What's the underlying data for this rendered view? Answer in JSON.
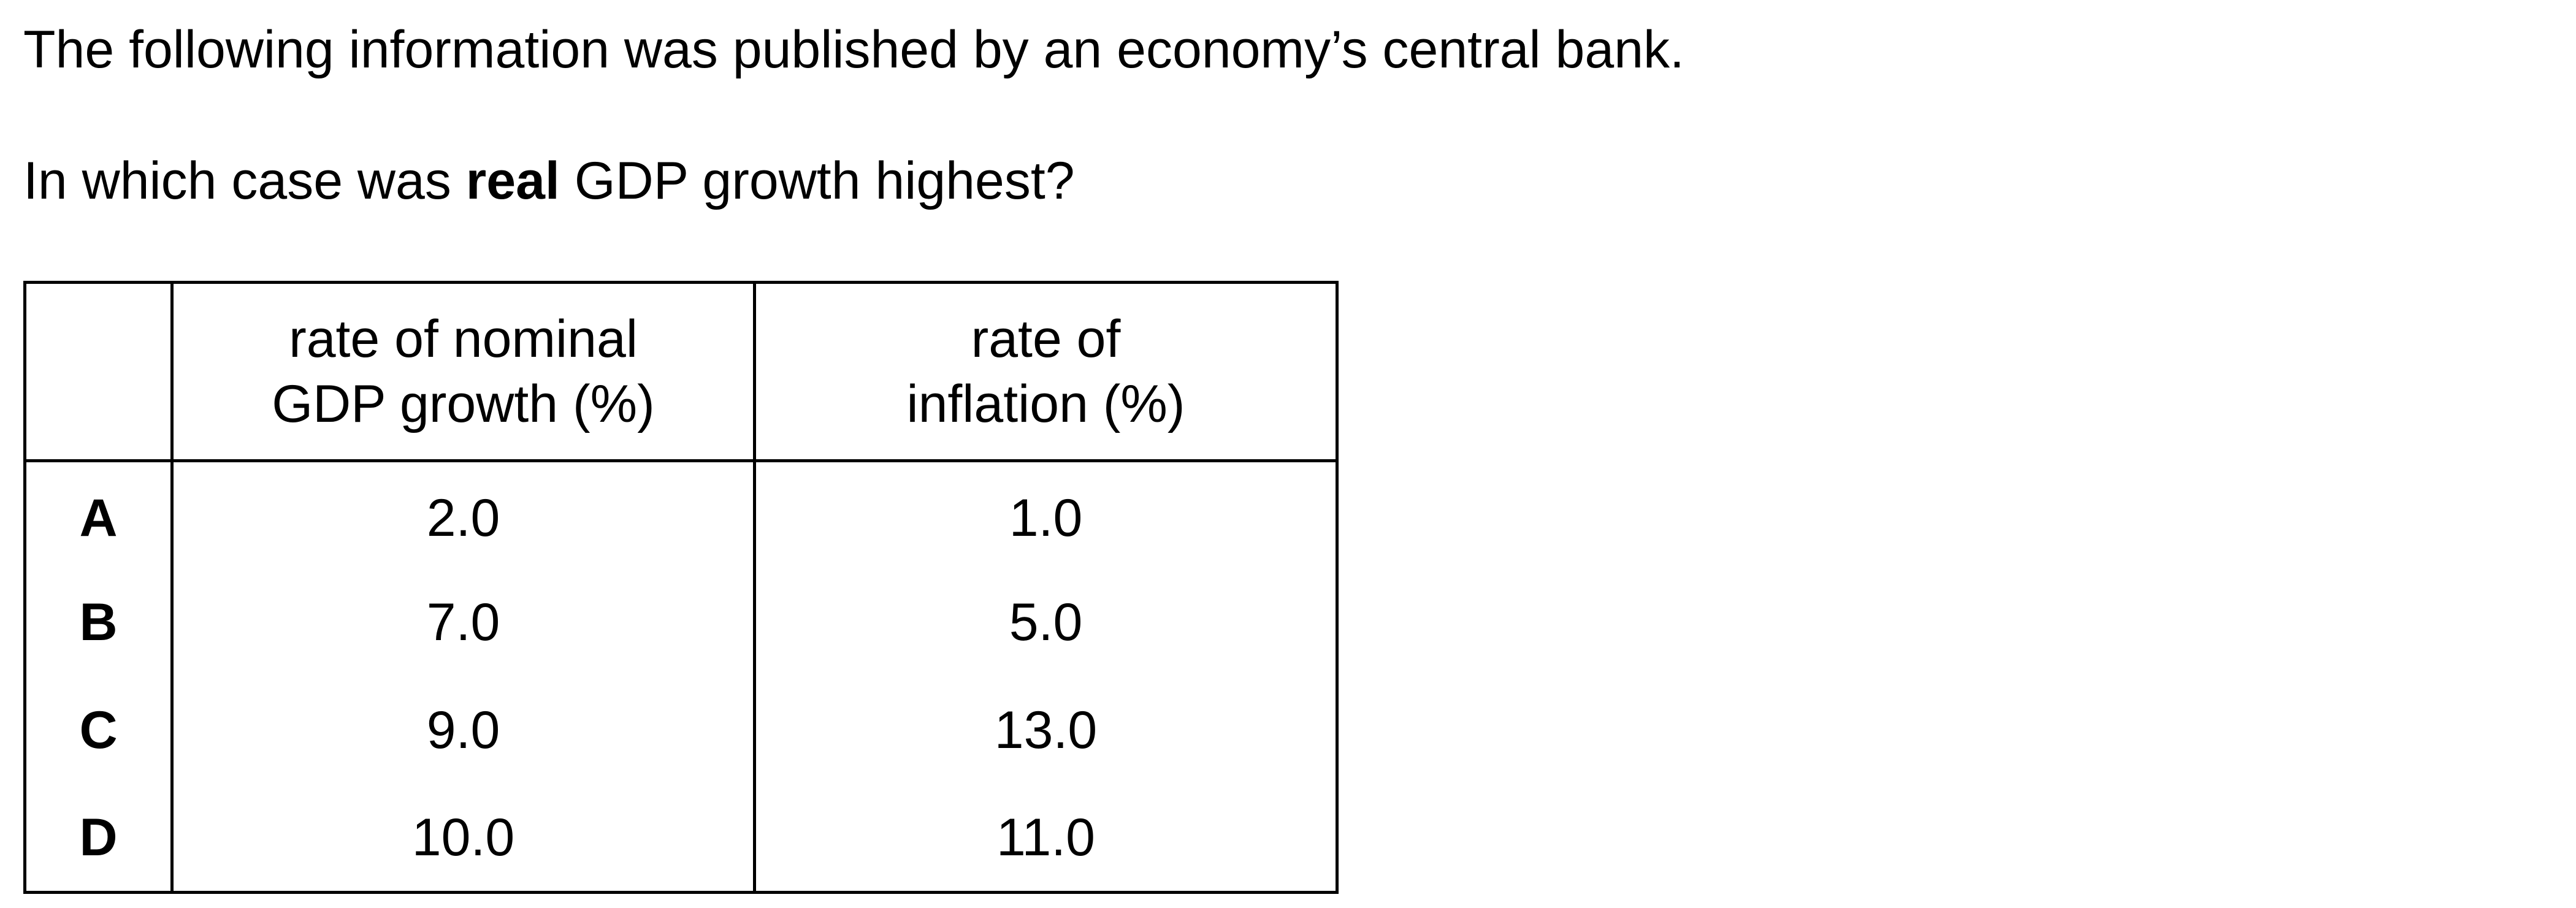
{
  "intro": "The following information was published by an economy’s central bank.",
  "question": {
    "before": "In which case was ",
    "emphasis": "real",
    "after": " GDP growth highest?"
  },
  "table": {
    "headers": [
      {
        "lines": [
          ""
        ]
      },
      {
        "lines": [
          "rate of nominal",
          "GDP growth (%)"
        ]
      },
      {
        "lines": [
          "rate of",
          "inflation (%)"
        ]
      }
    ],
    "rows": [
      {
        "option": "A",
        "nominal_gdp_growth": "2.0",
        "inflation": "1.0"
      },
      {
        "option": "B",
        "nominal_gdp_growth": "7.0",
        "inflation": "5.0"
      },
      {
        "option": "C",
        "nominal_gdp_growth": "9.0",
        "inflation": "13.0"
      },
      {
        "option": "D",
        "nominal_gdp_growth": "10.0",
        "inflation": "11.0"
      }
    ]
  }
}
